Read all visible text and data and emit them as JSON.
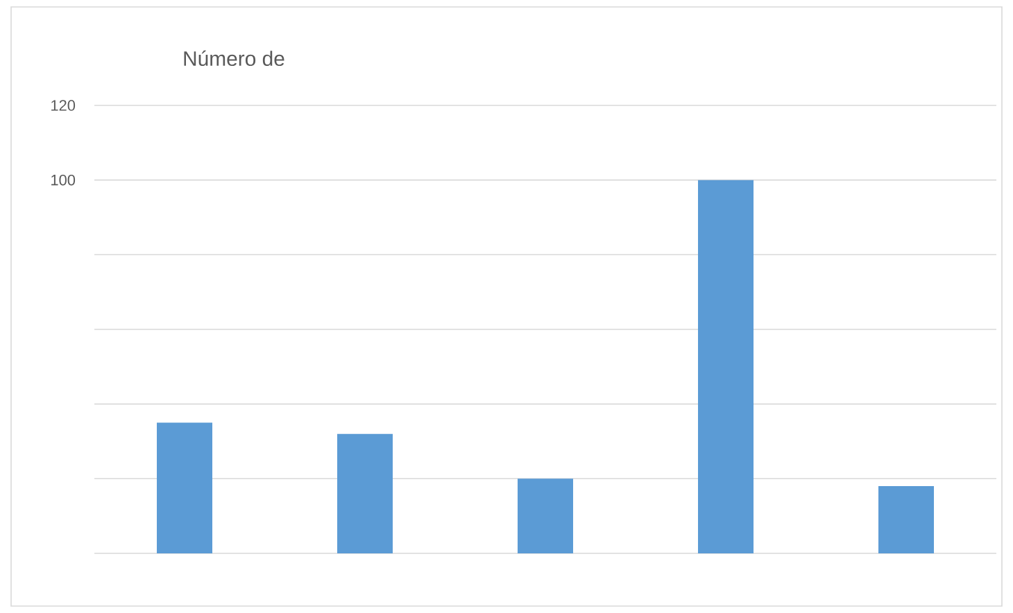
{
  "chart_data": {
    "type": "bar",
    "title": "Número de",
    "categories": [
      null,
      null,
      null,
      null,
      null
    ],
    "values": [
      35,
      32,
      20,
      100,
      18
    ],
    "color": "#5b9bd5",
    "ylim": [
      0,
      120
    ],
    "yticks": [
      {
        "value": 0,
        "label": null
      },
      {
        "value": 20,
        "label": null
      },
      {
        "value": 40,
        "label": null
      },
      {
        "value": 60,
        "label": null
      },
      {
        "value": 80,
        "label": null
      },
      100,
      120
    ],
    "grid": "y"
  }
}
